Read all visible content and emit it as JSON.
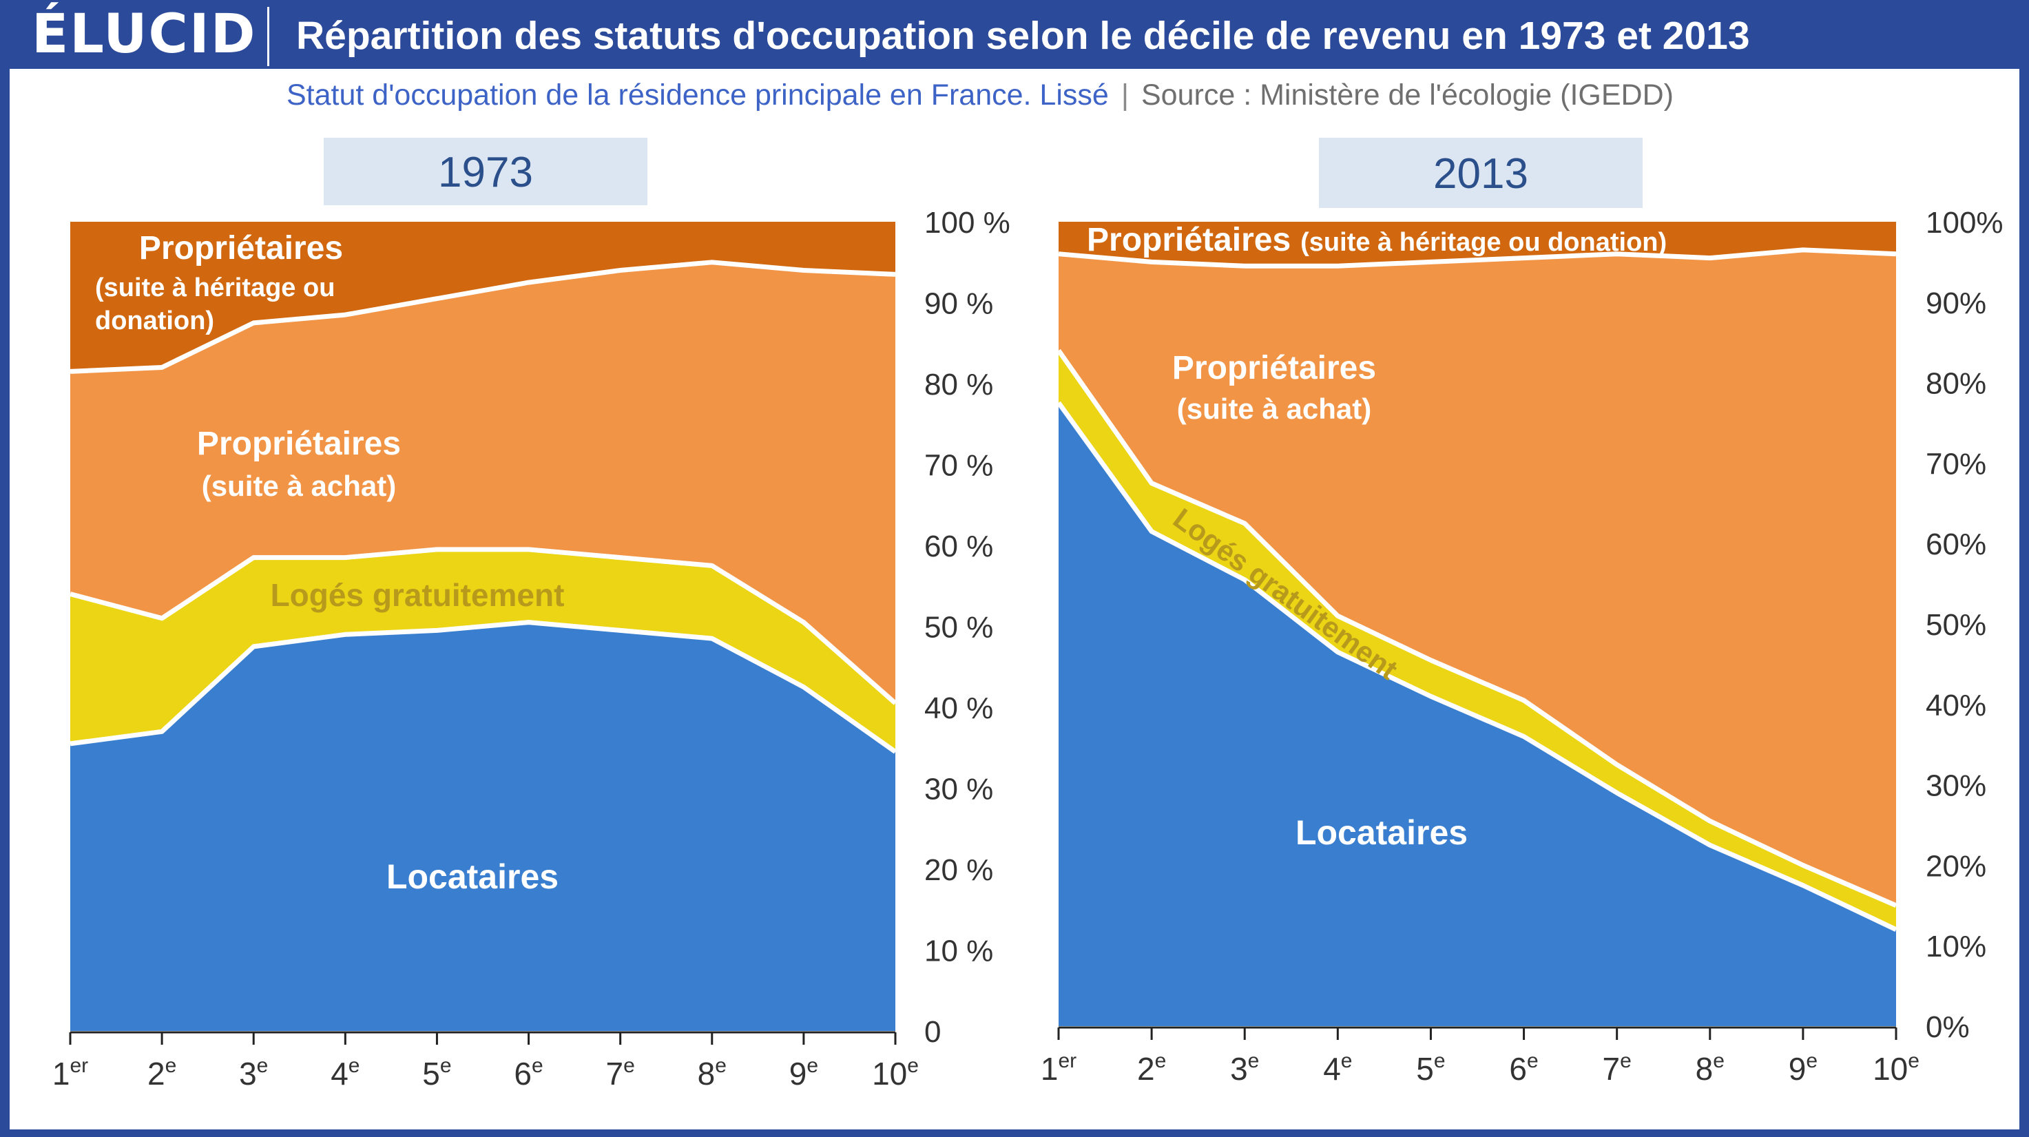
{
  "brand": {
    "logo": "ÉLUCID",
    "url": "www.elucid.media"
  },
  "header": {
    "title": "Répartition des statuts d'occupation selon le décile de revenu en 1973 et 2013",
    "subtitle": "Statut d'occupation de la résidence principale en France. Lissé",
    "source": "Source : Ministère de l'écologie (IGEDD)"
  },
  "colors": {
    "locataires": "#3a7fcf",
    "loges": "#ecd514",
    "achat": "#f29446",
    "heritage": "#d1680f",
    "panel_label_bg": "#dce6f2",
    "panel_label_text": "#2a4f8a",
    "axis_text": "#333333"
  },
  "chart_data": [
    {
      "type": "area",
      "stacked": true,
      "panel_label": "1973",
      "categories": [
        "1er",
        "2e",
        "3e",
        "4e",
        "5e",
        "6e",
        "7e",
        "8e",
        "9e",
        "10e"
      ],
      "y_ticks": [
        "0",
        "10 %",
        "20 %",
        "30 %",
        "40 %",
        "50 %",
        "60 %",
        "70 %",
        "80 %",
        "90 %",
        "100 %"
      ],
      "ylim": [
        0,
        100
      ],
      "series": [
        {
          "name": "Locataires",
          "values": [
            35.5,
            37,
            47.5,
            49,
            49.5,
            50.5,
            49.5,
            48.5,
            42.5,
            34.5
          ]
        },
        {
          "name": "Logés gratuitement",
          "values": [
            18.5,
            14,
            11,
            9.5,
            10,
            9,
            9,
            9,
            8,
            6
          ]
        },
        {
          "name": "Propriétaires (suite à achat)",
          "values": [
            27.5,
            31,
            29,
            30,
            31,
            33,
            35.5,
            37.5,
            43.5,
            53
          ]
        },
        {
          "name": "Propriétaires (suite à héritage ou donation)",
          "values": [
            18.5,
            18,
            12.5,
            11.5,
            9.5,
            7.5,
            6,
            5,
            6,
            6.5
          ]
        }
      ],
      "labels": {
        "heritage_1": "Propriétaires",
        "heritage_2": "(suite à héritage ou",
        "heritage_3": "donation)",
        "achat_1": "Propriétaires",
        "achat_2": "(suite à achat)",
        "loges": "Logés gratuitement",
        "locataires": "Locataires"
      }
    },
    {
      "type": "area",
      "stacked": true,
      "panel_label": "2013",
      "categories": [
        "1er",
        "2e",
        "3e",
        "4e",
        "5e",
        "6e",
        "7e",
        "8e",
        "9e",
        "10e"
      ],
      "y_ticks": [
        "0%",
        "10%",
        "20%",
        "30%",
        "40%",
        "50%",
        "60%",
        "70%",
        "80%",
        "90%",
        "100%"
      ],
      "ylim": [
        0,
        100
      ],
      "series": [
        {
          "name": "Locataires",
          "values": [
            77.5,
            61.5,
            55.5,
            46.5,
            41,
            36,
            29,
            22.5,
            17.5,
            12
          ]
        },
        {
          "name": "Logés gratuitement",
          "values": [
            6.5,
            6,
            7,
            4.5,
            4.5,
            4.5,
            3.5,
            3,
            2.5,
            3
          ]
        },
        {
          "name": "Propriétaires (suite à achat)",
          "values": [
            12,
            27.5,
            32,
            43.5,
            49.5,
            55,
            63.5,
            70,
            76.5,
            81
          ]
        },
        {
          "name": "Propriétaires (suite à héritage ou donation)",
          "values": [
            4,
            5,
            5.5,
            5.5,
            5,
            4.5,
            4,
            4.5,
            3.5,
            4
          ]
        }
      ],
      "labels": {
        "heritage_1": "Propriétaires",
        "heritage_2": "(suite à héritage ou donation)",
        "achat_1": "Propriétaires",
        "achat_2": "(suite à achat)",
        "loges": "Logés gratuitement",
        "locataires": "Locataires"
      }
    }
  ]
}
